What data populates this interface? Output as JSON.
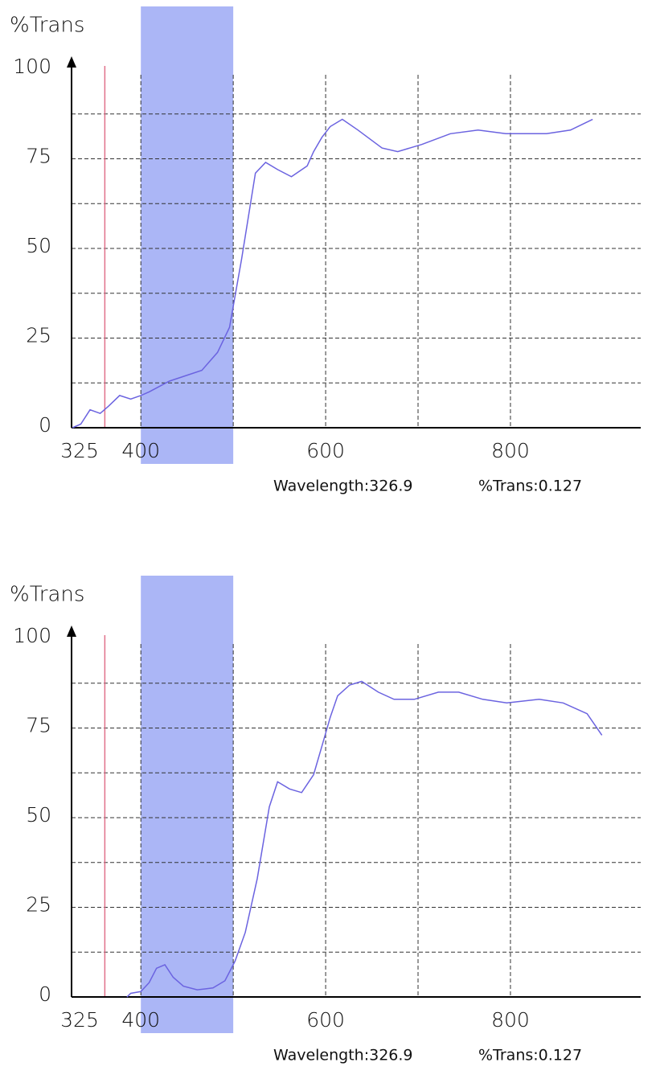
{
  "chart_data": [
    {
      "type": "line",
      "y_label": "%Trans",
      "readout": [
        "Wavelength:326.9",
        "%Trans:0.127"
      ],
      "x": [
        326,
        335,
        345,
        356,
        365,
        377,
        389,
        400,
        409,
        431,
        466,
        483,
        496,
        509,
        524,
        535,
        548,
        563,
        580,
        587,
        596,
        605,
        618,
        635,
        661,
        678,
        704,
        735,
        765,
        795,
        839,
        865,
        889
      ],
      "values": [
        0,
        1,
        5,
        4,
        6,
        9,
        8,
        9,
        10,
        13,
        16,
        21,
        28,
        47,
        71,
        74,
        72,
        70,
        73,
        77,
        81,
        84,
        86,
        83,
        78,
        77,
        79,
        82,
        83,
        82,
        82,
        83,
        86
      ],
      "color": "#6b63e0",
      "xlim": [
        325,
        941
      ],
      "ylim": [
        0,
        100
      ],
      "xticks": [
        325,
        400,
        600,
        800
      ],
      "yticks": [
        0,
        25,
        50,
        75,
        100
      ],
      "x_grid": [
        400,
        500,
        600,
        700,
        800
      ],
      "y_grid": [
        12.5,
        25,
        37.5,
        50,
        62.5,
        75,
        87.5
      ],
      "highlight": {
        "range": [
          400,
          500
        ],
        "color": "#abb6f6"
      },
      "cursor": {
        "x": 361,
        "color": "#e0708a"
      }
    },
    {
      "type": "line",
      "y_label": "%Trans",
      "readout": [
        "Wavelength:326.9",
        "%Trans:0.127"
      ],
      "x": [
        385,
        389,
        400,
        409,
        417,
        426,
        435,
        446,
        461,
        478,
        491,
        502,
        513,
        526,
        539,
        548,
        561,
        574,
        587,
        596,
        605,
        613,
        626,
        639,
        657,
        674,
        696,
        722,
        744,
        770,
        796,
        831,
        857,
        883,
        899
      ],
      "values": [
        0,
        1,
        1.5,
        4,
        8,
        9,
        5.5,
        3,
        2,
        2.5,
        4.5,
        10,
        18,
        33,
        53,
        60,
        58,
        57,
        62,
        70,
        78,
        84,
        87,
        88,
        85,
        83,
        83,
        85,
        85,
        83,
        82,
        83,
        82,
        79,
        73
      ],
      "color": "#6b63e0",
      "xlim": [
        325,
        941
      ],
      "ylim": [
        0,
        100
      ],
      "xticks": [
        325,
        400,
        600,
        800
      ],
      "yticks": [
        0,
        25,
        50,
        75,
        100
      ],
      "x_grid": [
        400,
        500,
        600,
        700,
        800
      ],
      "y_grid": [
        12.5,
        25,
        37.5,
        50,
        62.5,
        75,
        87.5
      ],
      "highlight": {
        "range": [
          400,
          500
        ],
        "color": "#abb6f6"
      },
      "cursor": {
        "x": 361,
        "color": "#e0708a"
      }
    }
  ]
}
